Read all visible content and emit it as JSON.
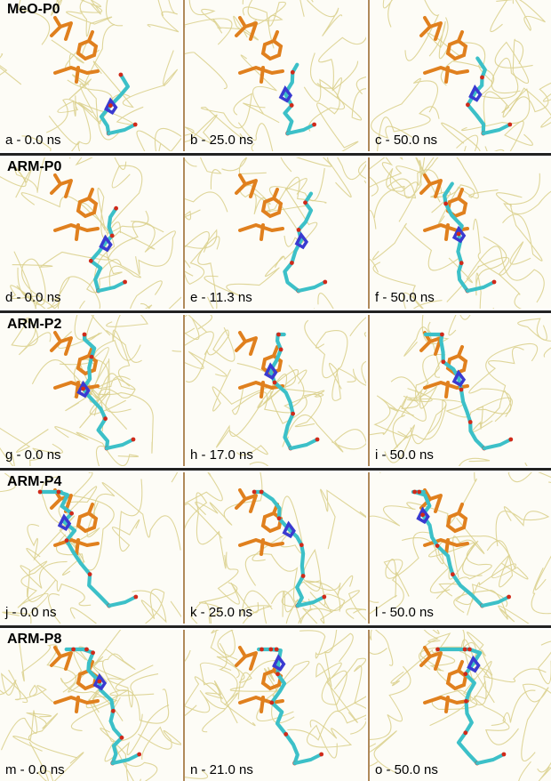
{
  "rows": [
    {
      "title": "MeO-P0",
      "panels": [
        {
          "label": "a - 0.0 ns"
        },
        {
          "label": "b - 25.0 ns"
        },
        {
          "label": "c - 50.0 ns"
        }
      ]
    },
    {
      "title": "ARM-P0",
      "panels": [
        {
          "label": "d - 0.0 ns"
        },
        {
          "label": "e - 11.3 ns"
        },
        {
          "label": "f - 50.0 ns"
        }
      ]
    },
    {
      "title": "ARM-P2",
      "panels": [
        {
          "label": "g - 0.0 ns"
        },
        {
          "label": "h - 17.0 ns"
        },
        {
          "label": "i - 50.0 ns"
        }
      ]
    },
    {
      "title": "ARM-P4",
      "panels": [
        {
          "label": "j - 0.0 ns"
        },
        {
          "label": "k - 25.0 ns"
        },
        {
          "label": "l - 50.0 ns"
        }
      ]
    },
    {
      "title": "ARM-P8",
      "panels": [
        {
          "label": "m - 0.0 ns"
        },
        {
          "label": "n - 21.0 ns"
        },
        {
          "label": "o - 50.0 ns"
        }
      ]
    }
  ],
  "colors": {
    "backbone": "#d9cf8a",
    "residue_orange": "#e0801e",
    "ligand_cyan": "#3cc0c8",
    "ligand_blue": "#3a3ad0",
    "oxygen_red": "#d02a1a",
    "separator": "#b08a5a",
    "divider": "#222222"
  }
}
